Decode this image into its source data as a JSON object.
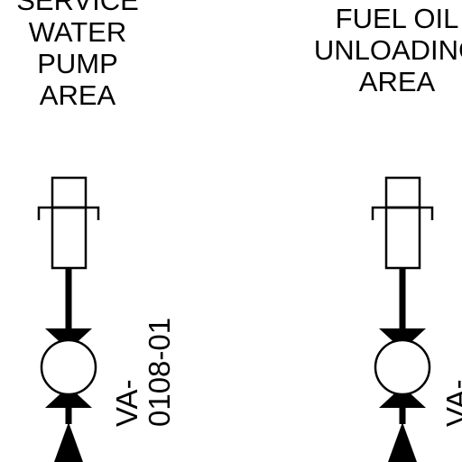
{
  "areas": {
    "left": {
      "lines": [
        "SERVICE",
        "WATER",
        "PUMP",
        "AREA"
      ]
    },
    "right": {
      "lines": [
        "FUEL OIL",
        "UNLOADING",
        "AREA"
      ]
    }
  },
  "valves": {
    "left": {
      "tag_lines": [
        "VA-",
        "0108-01"
      ]
    },
    "right": {
      "tag_lines": [
        "VA-",
        ""
      ]
    }
  },
  "colors": {
    "ink": "#000000",
    "background": "#ffffff"
  }
}
